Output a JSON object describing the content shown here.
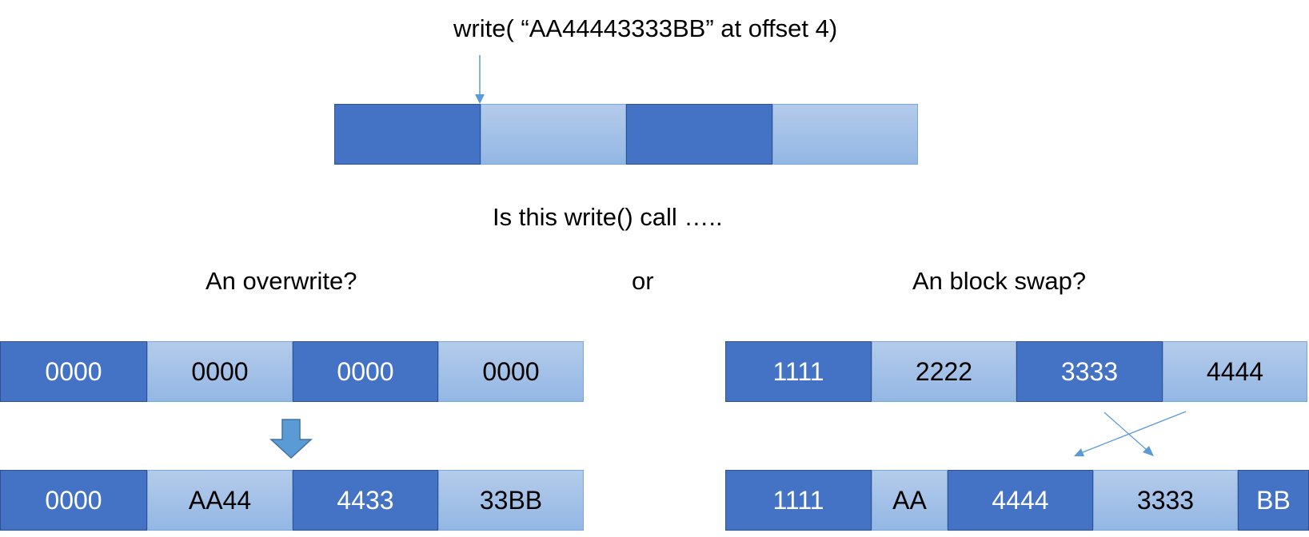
{
  "title": "write( “AA44443333BB” at offset 4)",
  "question": "Is this write() call …..",
  "or_label": "or",
  "left": {
    "heading": "An overwrite?",
    "before": [
      "0000",
      "0000",
      "0000",
      "0000"
    ],
    "after": [
      "0000",
      "AA44",
      "4433",
      "33BB"
    ]
  },
  "right": {
    "heading": "An block swap?",
    "before": [
      "1111",
      "2222",
      "3333",
      "4444"
    ],
    "after": [
      "1111",
      "AA",
      "4444",
      "3333",
      "BB"
    ]
  },
  "colors": {
    "dark_block": "#4472c4",
    "light_block": "#9dc3e6",
    "arrow": "#5b9bd5"
  }
}
